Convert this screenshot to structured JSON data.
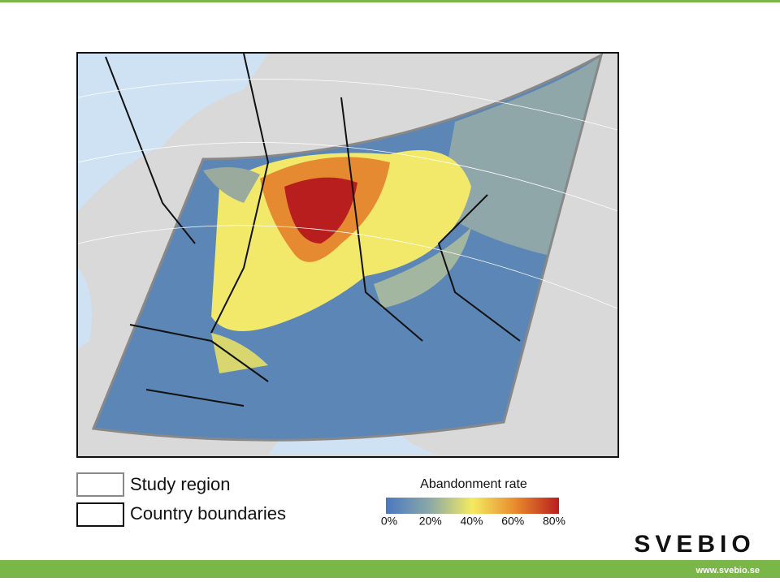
{
  "legend": {
    "items": [
      "Study region",
      "Country boundaries"
    ],
    "colorbar": {
      "title": "Abandonment rate",
      "ticks": [
        {
          "value": 0,
          "label": "0%"
        },
        {
          "value": 20,
          "label": "20%"
        },
        {
          "value": 40,
          "label": "40%"
        },
        {
          "value": 60,
          "label": "60%"
        },
        {
          "value": 80,
          "label": "80%"
        }
      ]
    }
  },
  "footer": {
    "logo": "SVEBIO",
    "url": "www.svebio.se"
  }
}
